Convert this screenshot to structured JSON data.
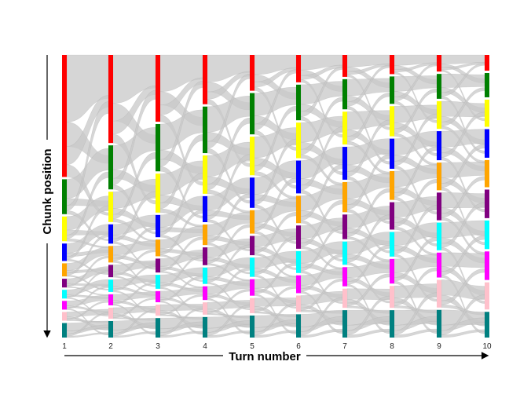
{
  "chart_data": {
    "type": "sankey",
    "xlabel": "Turn number",
    "ylabel": "Chunk position",
    "x": [
      1,
      2,
      3,
      4,
      5,
      6,
      7,
      8,
      9,
      10
    ],
    "x_tick_labels": [
      "1",
      "2",
      "3",
      "4",
      "5",
      "6",
      "7",
      "8",
      "9",
      "10"
    ],
    "chunk_colors": [
      "#ff0000",
      "#008000",
      "#ffff00",
      "#0000ff",
      "#ffa500",
      "#800080",
      "#00ffff",
      "#ff00ff",
      "#ffc0cb",
      "#008080"
    ],
    "link_color": "#c8c8c8",
    "chunk_size_share_by_turn": [
      [
        0.42,
        0.12,
        0.085,
        0.06,
        0.045,
        0.03,
        0.03,
        0.03,
        0.03,
        0.05
      ],
      [
        0.32,
        0.16,
        0.11,
        0.07,
        0.06,
        0.045,
        0.045,
        0.04,
        0.04,
        0.06
      ],
      [
        0.24,
        0.17,
        0.14,
        0.08,
        0.06,
        0.05,
        0.05,
        0.04,
        0.04,
        0.07
      ],
      [
        0.18,
        0.17,
        0.14,
        0.095,
        0.075,
        0.065,
        0.06,
        0.05,
        0.045,
        0.075
      ],
      [
        0.13,
        0.15,
        0.14,
        0.11,
        0.085,
        0.07,
        0.07,
        0.06,
        0.055,
        0.08
      ],
      [
        0.1,
        0.13,
        0.13,
        0.12,
        0.1,
        0.085,
        0.08,
        0.065,
        0.06,
        0.085
      ],
      [
        0.08,
        0.11,
        0.12,
        0.12,
        0.11,
        0.09,
        0.085,
        0.07,
        0.07,
        0.1
      ],
      [
        0.07,
        0.1,
        0.11,
        0.11,
        0.105,
        0.1,
        0.09,
        0.09,
        0.08,
        0.1
      ],
      [
        0.06,
        0.09,
        0.1,
        0.105,
        0.1,
        0.1,
        0.1,
        0.09,
        0.1,
        0.1
      ],
      [
        0.055,
        0.085,
        0.095,
        0.1,
        0.095,
        0.1,
        0.1,
        0.1,
        0.095,
        0.09
      ]
    ],
    "grid": false,
    "legend": "none"
  }
}
